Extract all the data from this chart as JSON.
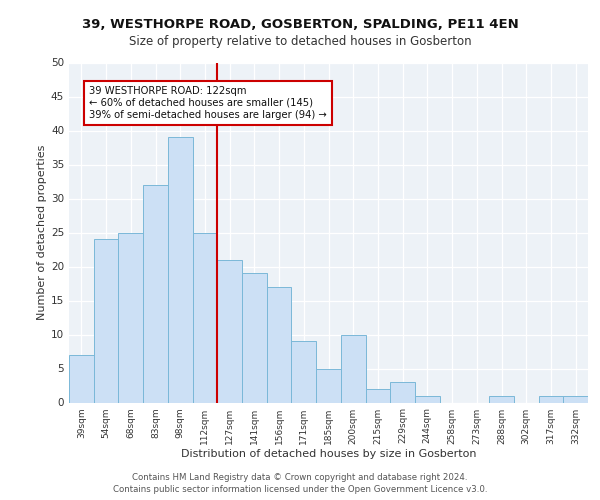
{
  "title1": "39, WESTHORPE ROAD, GOSBERTON, SPALDING, PE11 4EN",
  "title2": "Size of property relative to detached houses in Gosberton",
  "xlabel": "Distribution of detached houses by size in Gosberton",
  "ylabel": "Number of detached properties",
  "categories": [
    "39sqm",
    "54sqm",
    "68sqm",
    "83sqm",
    "98sqm",
    "112sqm",
    "127sqm",
    "141sqm",
    "156sqm",
    "171sqm",
    "185sqm",
    "200sqm",
    "215sqm",
    "229sqm",
    "244sqm",
    "258sqm",
    "273sqm",
    "288sqm",
    "302sqm",
    "317sqm",
    "332sqm"
  ],
  "values": [
    7,
    24,
    25,
    32,
    39,
    25,
    21,
    19,
    17,
    9,
    5,
    10,
    2,
    3,
    1,
    0,
    0,
    1,
    0,
    1,
    1
  ],
  "bar_color": "#cce0f5",
  "bar_edge_color": "#7ab8d8",
  "vline_color": "#cc0000",
  "annotation_text": "39 WESTHORPE ROAD: 122sqm\n← 60% of detached houses are smaller (145)\n39% of semi-detached houses are larger (94) →",
  "annotation_box_color": "#cc0000",
  "ylim": [
    0,
    50
  ],
  "yticks": [
    0,
    5,
    10,
    15,
    20,
    25,
    30,
    35,
    40,
    45,
    50
  ],
  "footer_line1": "Contains HM Land Registry data © Crown copyright and database right 2024.",
  "footer_line2": "Contains public sector information licensed under the Open Government Licence v3.0.",
  "bg_color": "#edf2f7",
  "grid_color": "#ffffff",
  "title1_fontsize": 9.5,
  "title2_fontsize": 8.5,
  "ylabel_fontsize": 8,
  "xlabel_fontsize": 8
}
